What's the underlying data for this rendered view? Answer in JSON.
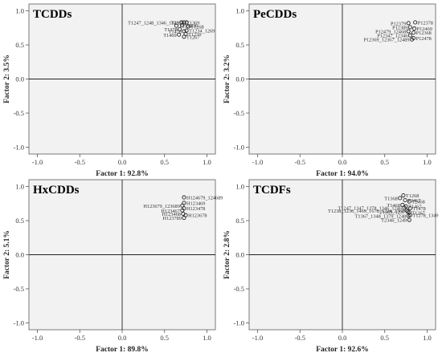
{
  "chart_data": [
    {
      "type": "scatter",
      "title": "TCDDs",
      "xlabel": "Factor 1: 92.8%",
      "ylabel": "Factor 2: 3.5%",
      "xlim": [
        -1.1,
        1.1
      ],
      "ylim": [
        -1.1,
        1.1
      ],
      "xticks": [
        "-1.0",
        "-0.5",
        "0.0",
        "0.5",
        "1.0"
      ],
      "yticks": [
        "1.0",
        "0.5",
        "0.0",
        "-0.5",
        "-1.0"
      ],
      "grid": false,
      "points": [
        {
          "label": "T1247_1248_1346_1349",
          "x": 0.7,
          "y": 0.83
        },
        {
          "label": "T1369",
          "x": 0.73,
          "y": 0.83
        },
        {
          "label": "T2378",
          "x": 0.76,
          "y": 0.83
        },
        {
          "label": "T1379",
          "x": 0.64,
          "y": 0.78
        },
        {
          "label": "T1236",
          "x": 0.71,
          "y": 0.79
        },
        {
          "label": "T1268",
          "x": 0.78,
          "y": 0.77
        },
        {
          "label": "T1378",
          "x": 0.68,
          "y": 0.73
        },
        {
          "label": "T1234_1269",
          "x": 0.76,
          "y": 0.71
        },
        {
          "label": "T1478",
          "x": 0.73,
          "y": 0.7
        },
        {
          "label": "T1239",
          "x": 0.75,
          "y": 0.66
        },
        {
          "label": "T1469",
          "x": 0.67,
          "y": 0.65
        },
        {
          "label": "T1267",
          "x": 0.73,
          "y": 0.62
        }
      ]
    },
    {
      "type": "scatter",
      "title": "PeCDDs",
      "xlabel": "Factor 1: 94.0%",
      "ylabel": "Factor 2: 3.2%",
      "xlim": [
        -1.1,
        1.1
      ],
      "ylim": [
        -1.1,
        1.1
      ],
      "xticks": [
        "-1.0",
        "-0.5",
        "0.0",
        "0.5",
        "1.0"
      ],
      "yticks": [
        "1.0",
        "0.5",
        "0.0",
        "-0.5",
        "-1.0"
      ],
      "grid": false,
      "points": [
        {
          "label": "P12378",
          "x": 0.86,
          "y": 0.83
        },
        {
          "label": "P12379",
          "x": 0.78,
          "y": 0.82
        },
        {
          "label": "P12389",
          "x": 0.8,
          "y": 0.76
        },
        {
          "label": "P12469",
          "x": 0.85,
          "y": 0.74
        },
        {
          "label": "P12479_12468",
          "x": 0.78,
          "y": 0.7
        },
        {
          "label": "P12368",
          "x": 0.84,
          "y": 0.68
        },
        {
          "label": "P12347_12346",
          "x": 0.8,
          "y": 0.64
        },
        {
          "label": "P12478",
          "x": 0.84,
          "y": 0.6
        },
        {
          "label": "P12369_12367_12489",
          "x": 0.82,
          "y": 0.58
        }
      ]
    },
    {
      "type": "scatter",
      "title": "HxCDDs",
      "xlabel": "Factor 1: 89.8%",
      "ylabel": "Factor 2: 5.1%",
      "xlim": [
        -1.1,
        1.1
      ],
      "ylim": [
        -1.1,
        1.1
      ],
      "xticks": [
        "-1.0",
        "-0.5",
        "0.0",
        "0.5",
        "1.0"
      ],
      "yticks": [
        "1.0",
        "0.5",
        "0.0",
        "-0.5",
        "-1.0"
      ],
      "grid": false,
      "points": [
        {
          "label": "H124679_124689",
          "x": 0.73,
          "y": 0.84
        },
        {
          "label": "H123469",
          "x": 0.73,
          "y": 0.76
        },
        {
          "label": "H123679_123689",
          "x": 0.71,
          "y": 0.72
        },
        {
          "label": "H123478",
          "x": 0.73,
          "y": 0.68
        },
        {
          "label": "H123467",
          "x": 0.71,
          "y": 0.65
        },
        {
          "label": "H123468",
          "x": 0.72,
          "y": 0.6
        },
        {
          "label": "H123678",
          "x": 0.75,
          "y": 0.58
        },
        {
          "label": "H123789",
          "x": 0.73,
          "y": 0.54
        }
      ]
    },
    {
      "type": "scatter",
      "title": "TCDFs",
      "xlabel": "Factor 1: 92.6%",
      "ylabel": "Factor 2: 2.8%",
      "xlim": [
        -1.1,
        1.1
      ],
      "ylim": [
        -1.1,
        1.1
      ],
      "xticks": [
        "-1.0",
        "-0.5",
        "0.0",
        "0.5",
        "1.0"
      ],
      "yticks": [
        "1.0",
        "0.5",
        "0.0",
        "-0.5",
        "-1.0"
      ],
      "grid": false,
      "points": [
        {
          "label": "T1268",
          "x": 0.72,
          "y": 0.87
        },
        {
          "label": "T1368",
          "x": 0.68,
          "y": 0.83
        },
        {
          "label": "T3467",
          "x": 0.74,
          "y": 0.8
        },
        {
          "label": "T2468",
          "x": 0.79,
          "y": 0.78
        },
        {
          "label": "T1468",
          "x": 0.71,
          "y": 0.73
        },
        {
          "label": "T1467",
          "x": 0.75,
          "y": 0.71
        },
        {
          "label": "T1478",
          "x": 0.8,
          "y": 0.68
        },
        {
          "label": "T1247_1347_1378_1346_1246",
          "x": 0.73,
          "y": 0.69
        },
        {
          "label": "T1238_1236_1469_1678_1234_2368",
          "x": 0.76,
          "y": 0.65
        },
        {
          "label": "T1369_1237",
          "x": 0.77,
          "y": 0.63
        },
        {
          "label": "T1267",
          "x": 0.79,
          "y": 0.62
        },
        {
          "label": "T1278_1349",
          "x": 0.8,
          "y": 0.58
        },
        {
          "label": "T1367_1348_1379_1248",
          "x": 0.78,
          "y": 0.57
        },
        {
          "label": "T2346_1249",
          "x": 0.79,
          "y": 0.51
        }
      ]
    }
  ]
}
